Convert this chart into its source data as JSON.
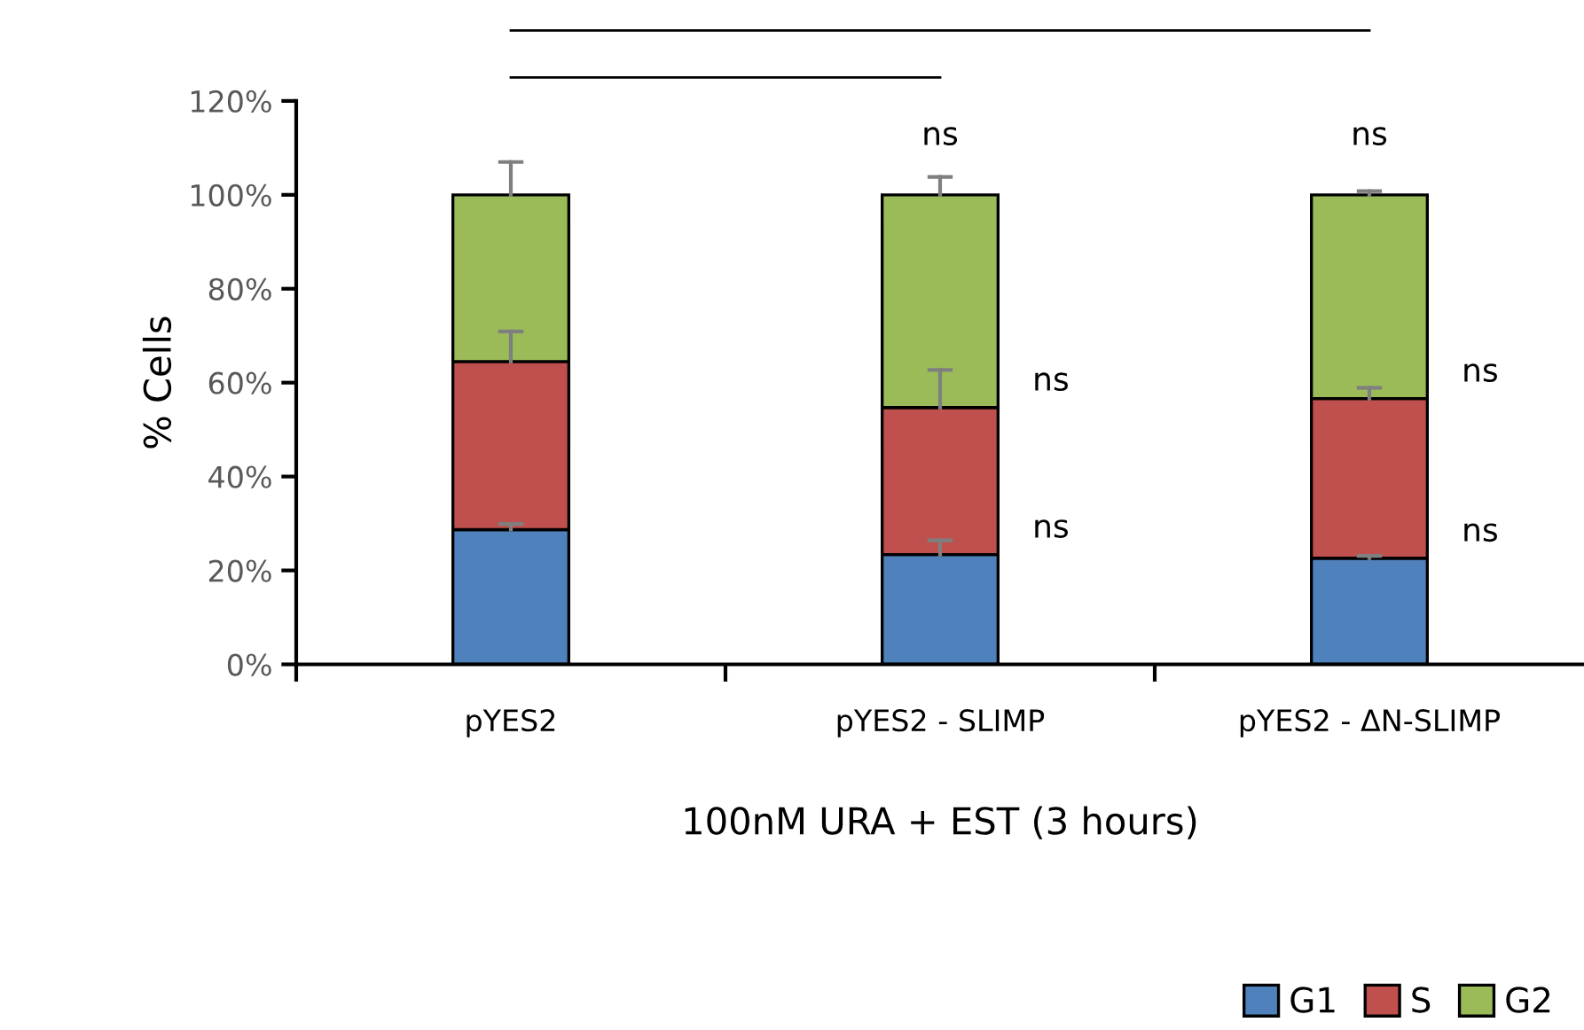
{
  "chart_data": {
    "type": "bar",
    "stacked": true,
    "xlabel": "100nM URA + EST (3 hours)",
    "ylabel": "% Cells",
    "categories": [
      "pYES2",
      "pYES2 - SLIMP",
      "pYES2 - ΔN-SLIMP"
    ],
    "series": [
      {
        "name": "G1",
        "color": "#4f81bd",
        "values": [
          28.7,
          23.4,
          22.6
        ],
        "errors": [
          [
            28.7,
            29.9
          ],
          [
            23.4,
            26.4
          ],
          [
            22.6,
            23.1
          ]
        ]
      },
      {
        "name": "S",
        "color": "#c0504d",
        "values": [
          35.8,
          31.3,
          34
        ],
        "errors": [
          [
            64.5,
            70.9
          ],
          [
            54.7,
            62.7
          ],
          [
            56.6,
            58.9
          ]
        ]
      },
      {
        "name": "G2",
        "color": "#9bbb59",
        "values": [
          35.5,
          45.3,
          43.4
        ],
        "errors": [
          [
            100,
            107
          ],
          [
            100,
            103.8
          ],
          [
            100,
            100.8
          ]
        ]
      }
    ],
    "ylim": [
      0,
      120
    ],
    "yticks": [
      {
        "value": 0,
        "label": "0%"
      },
      {
        "value": 20,
        "label": "20%"
      },
      {
        "value": 40,
        "label": "40%"
      },
      {
        "value": 60,
        "label": "60%"
      },
      {
        "value": 80,
        "label": "80%"
      },
      {
        "value": 100,
        "label": "100%"
      },
      {
        "value": 120,
        "label": "120%"
      }
    ],
    "annotations": [
      "ns",
      "ns",
      "ns",
      "ns",
      "ns",
      "ns"
    ],
    "legend": "bottom right",
    "grid": false
  }
}
